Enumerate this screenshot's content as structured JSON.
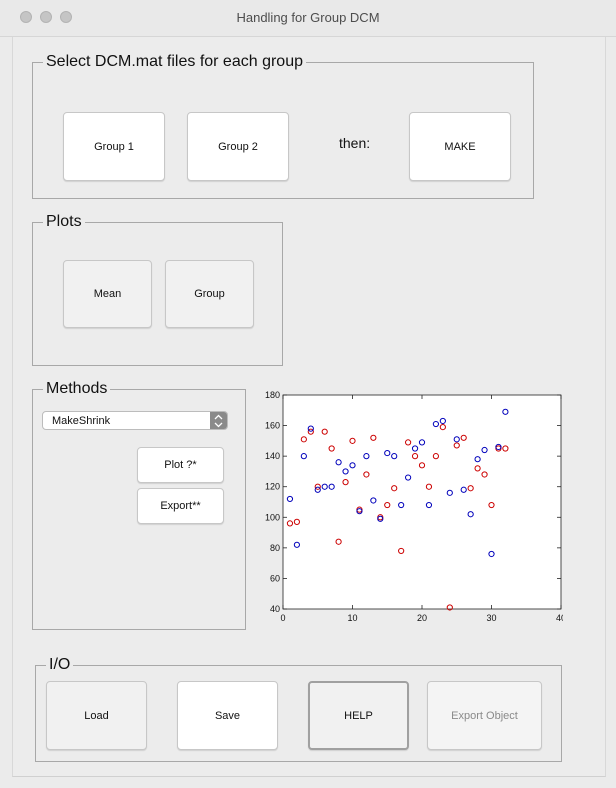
{
  "window": {
    "title": "Handling for Group DCM"
  },
  "select_panel": {
    "title": "Select DCM.mat files for each group",
    "group1_label": "Group 1",
    "group2_label": "Group 2",
    "then_label": "then:",
    "make_label": "MAKE"
  },
  "plots_panel": {
    "title": "Plots",
    "mean_label": "Mean",
    "group_label": "Group"
  },
  "methods_panel": {
    "title": "Methods",
    "method_selected": "MakeShrink",
    "plot_label": "Plot ?*",
    "export_label": "Export**"
  },
  "io_panel": {
    "title": "I/O",
    "load_label": "Load",
    "save_label": "Save",
    "help_label": "HELP",
    "export_object_label": "Export Object"
  },
  "colors": {
    "series_red": "#cc0000",
    "series_blue": "#0000bb"
  },
  "chart_data": {
    "type": "scatter",
    "title": "",
    "xlabel": "",
    "ylabel": "",
    "xlim": [
      0,
      40
    ],
    "ylim": [
      40,
      180
    ],
    "xticks": [
      "0",
      "10",
      "20",
      "30",
      "40"
    ],
    "yticks": [
      "40",
      "60",
      "80",
      "100",
      "120",
      "140",
      "160",
      "180"
    ],
    "grid": false,
    "series": [
      {
        "color": "#cc0000",
        "x": [
          1,
          2,
          3,
          4,
          5,
          6,
          7,
          8,
          9,
          10,
          11,
          12,
          13,
          14,
          15,
          16,
          17,
          18,
          19,
          20,
          21,
          22,
          23,
          24,
          25,
          26,
          27,
          28,
          29,
          30,
          31,
          32
        ],
        "y": [
          96,
          97,
          151,
          156,
          120,
          156,
          145,
          84,
          123,
          150,
          105,
          128,
          152,
          100,
          108,
          119,
          78,
          149,
          140,
          134,
          120,
          140,
          159,
          41,
          147,
          152,
          119,
          132,
          128,
          108,
          145,
          145
        ]
      },
      {
        "color": "#0000bb",
        "x": [
          1,
          2,
          3,
          4,
          5,
          6,
          7,
          8,
          9,
          10,
          11,
          12,
          13,
          14,
          15,
          16,
          17,
          18,
          19,
          20,
          21,
          22,
          23,
          24,
          25,
          26,
          27,
          28,
          29,
          30,
          31,
          32
        ],
        "y": [
          112,
          82,
          140,
          158,
          118,
          120,
          120,
          136,
          130,
          134,
          104,
          140,
          111,
          99,
          142,
          140,
          108,
          126,
          145,
          149,
          108,
          161,
          163,
          116,
          151,
          118,
          102,
          138,
          144,
          76,
          146,
          169
        ]
      }
    ]
  }
}
